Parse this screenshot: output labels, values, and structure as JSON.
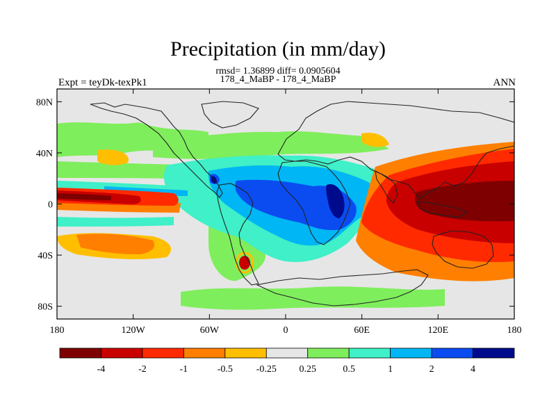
{
  "header": {
    "title": "Precipitation (in mm/day)",
    "stats": "rmsd= 1.36899 diff= 0.0905604",
    "comparison": "178_4_MaBP - 178_4_MaBP",
    "experiment": "Expt = teyDk-texPk1",
    "season": "ANN"
  },
  "chart_data": {
    "type": "heatmap",
    "title": "Precipitation (in mm/day)",
    "subtitle": "rmsd= 1.36899 diff= 0.0905604",
    "xlabel": "",
    "ylabel": "",
    "xlim": [
      -180,
      180
    ],
    "ylim": [
      -90,
      90
    ],
    "x_ticks": [
      {
        "value": -180,
        "label": "180"
      },
      {
        "value": -120,
        "label": "120W"
      },
      {
        "value": -60,
        "label": "60W"
      },
      {
        "value": 0,
        "label": "0"
      },
      {
        "value": 60,
        "label": "60E"
      },
      {
        "value": 120,
        "label": "120E"
      },
      {
        "value": 180,
        "label": "180"
      }
    ],
    "y_ticks": [
      {
        "value": 80,
        "label": "80N"
      },
      {
        "value": 40,
        "label": "40N"
      },
      {
        "value": 0,
        "label": "0"
      },
      {
        "value": -40,
        "label": "40S"
      },
      {
        "value": -80,
        "label": "80S"
      }
    ],
    "colorbar": {
      "levels": [
        "-4",
        "-2",
        "-1",
        "-0.5",
        "-0.25",
        "0.25",
        "0.5",
        "1",
        "2",
        "4"
      ],
      "colors": [
        "#7f0000",
        "#c80000",
        "#ff2a00",
        "#ff7f00",
        "#ffbf00",
        "#e6e6e6",
        "#7fee5c",
        "#3ff0c8",
        "#00b6f4",
        "#0a4cf0",
        "#000a8c"
      ]
    },
    "field_regions": [
      {
        "level": "<-4",
        "color": "#7f0000",
        "region": "tropical Pacific 130E-180, 10N-10S"
      },
      {
        "level": "-4..-2",
        "color": "#c80000",
        "region": "Pacific 90E-180, 20N-30S; far-west 180-160W, 0-10N"
      },
      {
        "level": "-2..-1",
        "color": "#ff2a00",
        "region": "Pacific 70E-180, 30N-30S; 180-100W, 10N-5S"
      },
      {
        "level": "-1..-0.5",
        "color": "#ff7f00",
        "region": "west Pacific and South Pacific 40S"
      },
      {
        "level": "-0.5..-0.25",
        "color": "#ffbf00",
        "region": "fringes of drying zones"
      },
      {
        "level": "0.25..0.5",
        "color": "#7fee5c",
        "region": "mid-latitude bands, Southern Ocean 60S"
      },
      {
        "level": "0.5..1",
        "color": "#3ff0c8",
        "region": "Atlantic / Africa 60W-80E, 30N-45S"
      },
      {
        "level": "1..2",
        "color": "#00b6f4",
        "region": "Central America to Indian Ocean 80W-70E, 25N-30S"
      },
      {
        "level": "2..4",
        "color": "#0a4cf0",
        "region": "Africa & Indian Ocean 20W-60E, 20N-20S"
      },
      {
        "level": ">4",
        "color": "#000a8c",
        "region": "East Africa 35E-50E, 10N-10S"
      }
    ]
  }
}
